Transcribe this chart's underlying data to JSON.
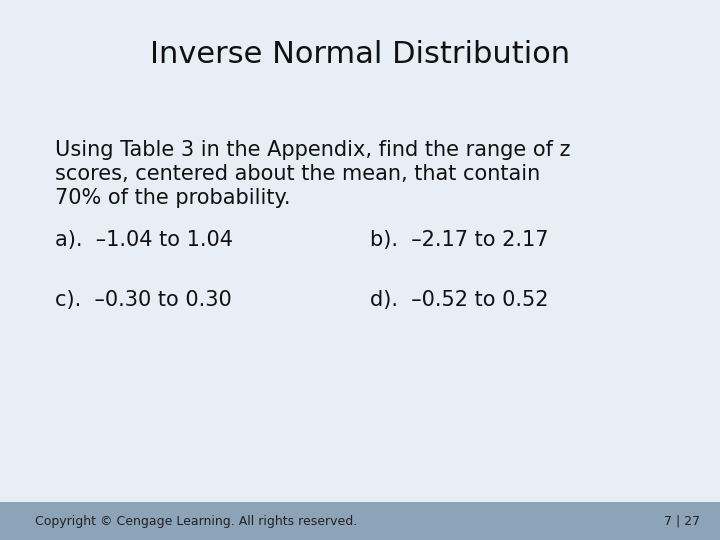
{
  "title": "Inverse Normal Distribution",
  "title_fontsize": 22,
  "title_color": "#111111",
  "bg_color": "#e8eef5",
  "footer_bg_color": "#8da4b8",
  "body_text_line1": "Using Table 3 in the Appendix, find the range of z",
  "body_text_line2": "scores, centered about the mean, that contain",
  "body_text_line3": "70% of the probability.",
  "body_fontsize": 15,
  "body_color": "#111111",
  "answer_a": "a).  –1.04 to 1.04",
  "answer_b": "b).  –2.17 to 2.17",
  "answer_c": "c).  –0.30 to 0.30",
  "answer_d": "d).  –0.52 to 0.52",
  "answer_fontsize": 15,
  "answer_color": "#111111",
  "footer_text": "Copyright © Cengage Learning. All rights reserved.",
  "footer_page": "7 | 27",
  "footer_fontsize": 9,
  "footer_color": "#222222"
}
